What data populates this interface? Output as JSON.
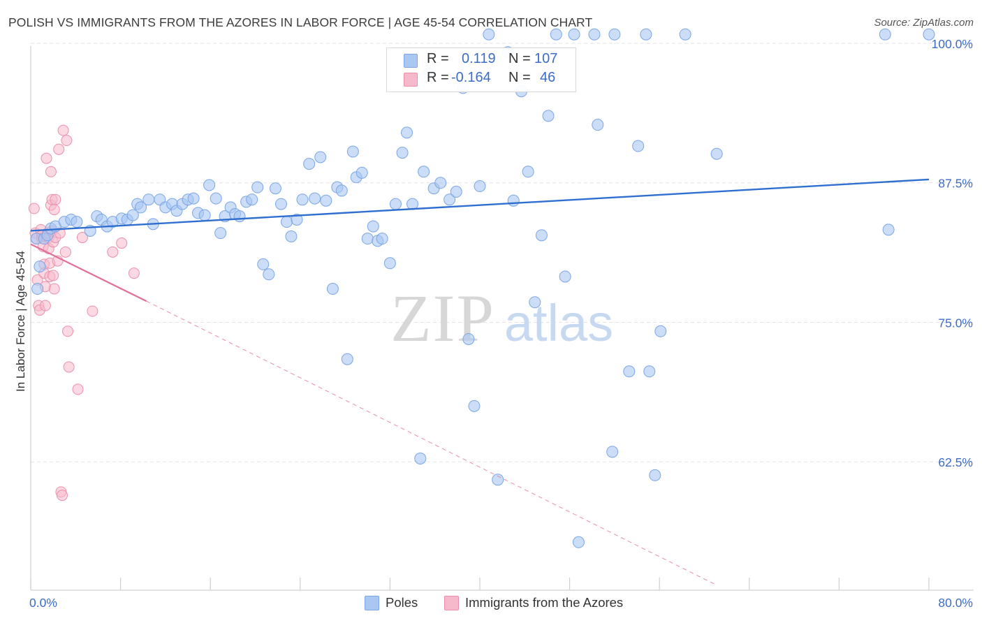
{
  "title": "POLISH VS IMMIGRANTS FROM THE AZORES IN LABOR FORCE | AGE 45-54 CORRELATION CHART",
  "source": "Source: ZipAtlas.com",
  "watermark": {
    "zip": "ZIP",
    "atlas": "atlas"
  },
  "legend": {
    "rows": [
      {
        "r_label": "R =",
        "r_value": "0.119",
        "n_label": "N =",
        "n_value": "107",
        "color": "#a9c7f1"
      },
      {
        "r_label": "R =",
        "r_value": "-0.164",
        "n_label": "N =",
        "n_value": "46",
        "color": "#f6b9cc"
      }
    ]
  },
  "bottom_legend": {
    "poles": "Poles",
    "azores": "Immigrants from the Azores"
  },
  "colors": {
    "blue_fill": "#a9c7f1",
    "blue_stroke": "#7aa6e6",
    "blue_line": "#2f6fcf",
    "pink_fill": "#f6b9cc",
    "pink_stroke": "#ec8fab",
    "pink_line": "#e0709a",
    "tick_text": "#3b6cc7",
    "grid": "#e3e3e3"
  },
  "chart_data": {
    "type": "scatter",
    "title": "POLISH VS IMMIGRANTS FROM THE AZORES IN LABOR FORCE | AGE 45-54 CORRELATION CHART",
    "xlabel": "",
    "ylabel": "In Labor Force | Age 45-54",
    "xlim": [
      0,
      80
    ],
    "ylim": [
      51,
      100
    ],
    "x_tick_labels": [
      "0.0%",
      "80.0%"
    ],
    "y_ticks": [
      62.5,
      75.0,
      87.5,
      100.0
    ],
    "y_tick_labels": [
      "62.5%",
      "75.0%",
      "87.5%",
      "100.0%"
    ],
    "grid": true,
    "series": [
      {
        "name": "Poles",
        "R": 0.119,
        "N": 107,
        "trend": {
          "x": [
            0,
            80
          ],
          "y": [
            83.2,
            87.8
          ],
          "style": "solid"
        },
        "points": [
          [
            0.5,
            82.5
          ],
          [
            0.8,
            80.0
          ],
          [
            0.6,
            78.0
          ],
          [
            1.2,
            82.5
          ],
          [
            1.5,
            82.8
          ],
          [
            1.8,
            83.4
          ],
          [
            2.2,
            83.6
          ],
          [
            3.0,
            84.0
          ],
          [
            3.6,
            84.2
          ],
          [
            4.1,
            84.0
          ],
          [
            5.3,
            83.2
          ],
          [
            5.9,
            84.5
          ],
          [
            6.3,
            84.2
          ],
          [
            6.8,
            83.6
          ],
          [
            7.3,
            84.0
          ],
          [
            8.1,
            84.3
          ],
          [
            8.6,
            84.2
          ],
          [
            9.1,
            84.6
          ],
          [
            9.5,
            85.6
          ],
          [
            9.8,
            85.3
          ],
          [
            10.5,
            86.0
          ],
          [
            10.9,
            83.8
          ],
          [
            11.5,
            86.0
          ],
          [
            12.0,
            85.3
          ],
          [
            12.6,
            85.6
          ],
          [
            13.0,
            85.0
          ],
          [
            13.5,
            85.6
          ],
          [
            14.0,
            86.0
          ],
          [
            14.5,
            86.1
          ],
          [
            14.9,
            84.8
          ],
          [
            15.5,
            84.6
          ],
          [
            15.9,
            87.3
          ],
          [
            16.5,
            86.1
          ],
          [
            16.9,
            83.0
          ],
          [
            17.3,
            84.5
          ],
          [
            17.8,
            85.3
          ],
          [
            18.2,
            84.7
          ],
          [
            18.6,
            84.5
          ],
          [
            19.2,
            85.8
          ],
          [
            19.7,
            86.0
          ],
          [
            20.2,
            87.1
          ],
          [
            20.7,
            80.2
          ],
          [
            21.2,
            79.3
          ],
          [
            21.8,
            87.0
          ],
          [
            22.3,
            85.6
          ],
          [
            22.8,
            84.0
          ],
          [
            23.2,
            82.7
          ],
          [
            23.7,
            84.2
          ],
          [
            24.2,
            86.0
          ],
          [
            24.8,
            89.2
          ],
          [
            25.3,
            86.1
          ],
          [
            25.8,
            89.8
          ],
          [
            26.3,
            85.9
          ],
          [
            26.9,
            78.0
          ],
          [
            27.3,
            87.1
          ],
          [
            27.7,
            86.8
          ],
          [
            28.2,
            71.7
          ],
          [
            28.7,
            90.3
          ],
          [
            29.0,
            88.0
          ],
          [
            29.5,
            88.4
          ],
          [
            30.0,
            82.5
          ],
          [
            30.5,
            83.6
          ],
          [
            30.9,
            82.3
          ],
          [
            31.3,
            82.5
          ],
          [
            32.0,
            80.3
          ],
          [
            32.5,
            85.6
          ],
          [
            33.1,
            90.2
          ],
          [
            33.5,
            92.0
          ],
          [
            34.0,
            85.6
          ],
          [
            34.7,
            62.8
          ],
          [
            35.0,
            88.5
          ],
          [
            35.5,
            97.3
          ],
          [
            35.9,
            87.0
          ],
          [
            36.5,
            87.5
          ],
          [
            37.3,
            86.0
          ],
          [
            37.9,
            86.7
          ],
          [
            38.5,
            96.0
          ],
          [
            39.0,
            73.5
          ],
          [
            39.5,
            67.5
          ],
          [
            40.0,
            87.2
          ],
          [
            40.8,
            100.8
          ],
          [
            41.6,
            60.9
          ],
          [
            42.5,
            99.2
          ],
          [
            43.0,
            85.9
          ],
          [
            43.7,
            95.7
          ],
          [
            44.3,
            88.5
          ],
          [
            44.9,
            76.8
          ],
          [
            45.5,
            82.8
          ],
          [
            46.1,
            93.5
          ],
          [
            46.8,
            100.8
          ],
          [
            47.6,
            79.1
          ],
          [
            48.4,
            100.8
          ],
          [
            48.8,
            55.3
          ],
          [
            50.2,
            100.8
          ],
          [
            50.5,
            92.7
          ],
          [
            51.8,
            63.4
          ],
          [
            52.0,
            100.8
          ],
          [
            53.3,
            70.6
          ],
          [
            54.1,
            90.8
          ],
          [
            54.8,
            100.8
          ],
          [
            55.1,
            70.6
          ],
          [
            55.6,
            61.3
          ],
          [
            56.1,
            74.2
          ],
          [
            58.3,
            100.8
          ],
          [
            61.1,
            90.1
          ],
          [
            76.1,
            100.8
          ],
          [
            76.4,
            83.3
          ],
          [
            80.0,
            100.8
          ]
        ]
      },
      {
        "name": "Immigrants from the Azores",
        "R": -0.164,
        "N": 46,
        "trend": {
          "x": [
            0,
            10.3
          ],
          "y": [
            82.0,
            76.9
          ],
          "style": "solid"
        },
        "trend_extension": {
          "x": [
            10.3,
            61.0
          ],
          "y": [
            76.9,
            51.5
          ],
          "style": "dashed"
        },
        "points": [
          [
            0.3,
            85.2
          ],
          [
            0.4,
            83.0
          ],
          [
            0.5,
            82.5
          ],
          [
            0.6,
            78.8
          ],
          [
            0.7,
            76.5
          ],
          [
            0.8,
            76.1
          ],
          [
            0.9,
            83.3
          ],
          [
            1.0,
            82.8
          ],
          [
            1.0,
            82.5
          ],
          [
            1.1,
            81.8
          ],
          [
            1.2,
            80.2
          ],
          [
            1.2,
            79.4
          ],
          [
            1.3,
            78.2
          ],
          [
            1.3,
            76.5
          ],
          [
            1.4,
            89.7
          ],
          [
            1.5,
            83.0
          ],
          [
            1.6,
            82.6
          ],
          [
            1.6,
            81.6
          ],
          [
            1.7,
            80.3
          ],
          [
            1.7,
            79.1
          ],
          [
            1.8,
            88.5
          ],
          [
            1.8,
            85.5
          ],
          [
            1.9,
            86.0
          ],
          [
            1.9,
            83.2
          ],
          [
            2.0,
            82.2
          ],
          [
            2.0,
            79.2
          ],
          [
            2.1,
            85.1
          ],
          [
            2.1,
            78.0
          ],
          [
            2.2,
            86.0
          ],
          [
            2.2,
            82.6
          ],
          [
            2.4,
            80.5
          ],
          [
            2.5,
            90.5
          ],
          [
            2.6,
            83.0
          ],
          [
            2.7,
            59.8
          ],
          [
            2.8,
            59.5
          ],
          [
            2.9,
            92.2
          ],
          [
            3.1,
            81.3
          ],
          [
            3.2,
            91.3
          ],
          [
            3.3,
            74.2
          ],
          [
            3.4,
            71.0
          ],
          [
            4.2,
            69.0
          ],
          [
            4.6,
            82.6
          ],
          [
            5.5,
            76.0
          ],
          [
            7.3,
            81.3
          ],
          [
            8.1,
            82.1
          ],
          [
            9.2,
            79.4
          ]
        ]
      }
    ]
  }
}
